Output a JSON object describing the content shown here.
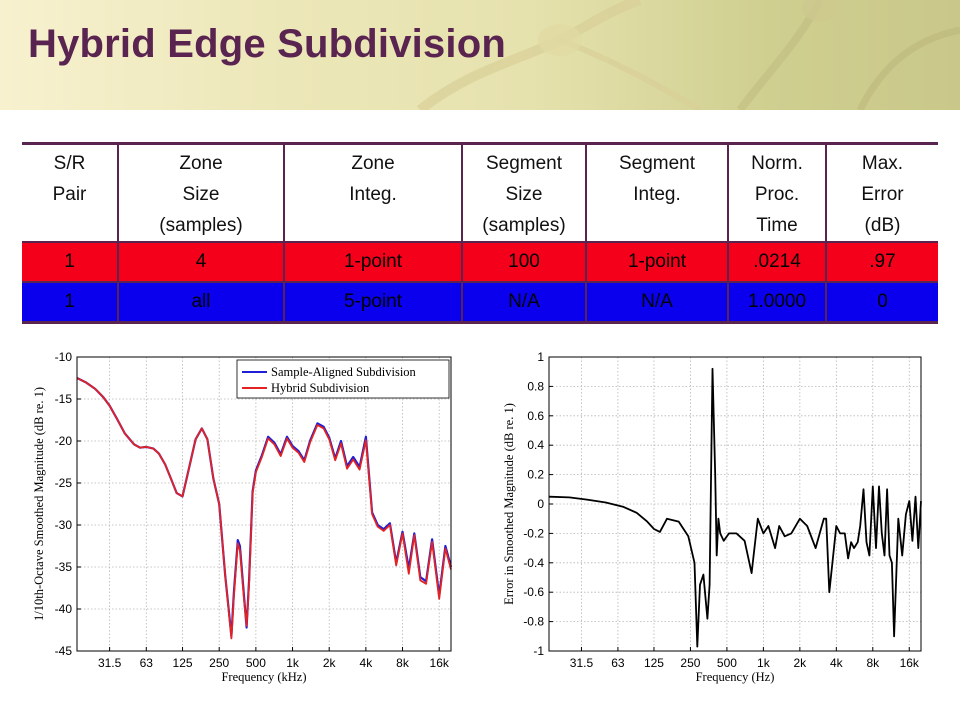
{
  "slide": {
    "title": "Hybrid Edge Subdivision"
  },
  "table": {
    "headers": [
      [
        "S/R",
        "Pair"
      ],
      [
        "Zone",
        "Size",
        "(samples)"
      ],
      [
        "Zone",
        "Integ."
      ],
      [
        "Segment",
        "Size",
        "(samples)"
      ],
      [
        "Segment",
        "Integ."
      ],
      [
        "Norm.",
        "Proc.",
        "Time"
      ],
      [
        "Max.",
        "Error",
        "(dB)"
      ]
    ],
    "rows": [
      {
        "color": "#f5001b",
        "cells": [
          "1",
          "4",
          "1-point",
          "100",
          "1-point",
          ".0214",
          ".97"
        ]
      },
      {
        "color": "#0a00ee",
        "cells": [
          "1",
          "all",
          "5-point",
          "N/A",
          "N/A",
          "1.0000",
          "0"
        ]
      }
    ]
  },
  "chart_data": [
    {
      "type": "line",
      "xlabel": "Frequency (kHz)",
      "ylabel": "1/10th-Octave Smoothed Magnitude (dB re. 1)",
      "x_scale": "log",
      "xlim": [
        17,
        20000
      ],
      "ylim": [
        -45,
        -10
      ],
      "x_ticks": [
        31.5,
        63,
        125,
        250,
        500,
        1000,
        2000,
        4000,
        8000,
        16000
      ],
      "x_tick_labels": [
        "31.5",
        "63",
        "125",
        "250",
        "500",
        "1k",
        "2k",
        "4k",
        "8k",
        "16k"
      ],
      "y_ticks": [
        -10,
        -15,
        -20,
        -25,
        -30,
        -35,
        -40,
        -45
      ],
      "grid": true,
      "legend_position": "top-right",
      "series": [
        {
          "name": "Sample-Aligned Subdivision",
          "color": "#1f1fd6",
          "x": [
            17,
            20,
            24,
            28,
            31.5,
            36,
            42,
            50,
            56,
            63,
            72,
            80,
            90,
            100,
            112,
            125,
            140,
            160,
            180,
            200,
            224,
            250,
            280,
            315,
            330,
            355,
            370,
            400,
            420,
            440,
            470,
            500,
            560,
            630,
            710,
            800,
            900,
            1000,
            1120,
            1250,
            1400,
            1600,
            1800,
            2000,
            2240,
            2500,
            2800,
            3150,
            3550,
            4000,
            4500,
            5000,
            5600,
            6300,
            7100,
            8000,
            9000,
            10000,
            11200,
            12500,
            14000,
            16000,
            18000,
            20000
          ],
          "y": [
            -12.5,
            -13,
            -13.8,
            -14.8,
            -15.8,
            -17.3,
            -19.1,
            -20.4,
            -20.8,
            -20.7,
            -20.9,
            -21.5,
            -22.8,
            -24.4,
            -26.2,
            -26.6,
            -23.5,
            -19.8,
            -18.5,
            -19.8,
            -24.5,
            -27.5,
            -36,
            -43.2,
            -38,
            -31.8,
            -32.5,
            -38.6,
            -42.2,
            -36.5,
            -26,
            -23.5,
            -21.7,
            -19.5,
            -20.2,
            -21.6,
            -19.5,
            -20.6,
            -21.2,
            -22.3,
            -19.9,
            -17.9,
            -18.3,
            -19.6,
            -22.1,
            -20,
            -23,
            -21.9,
            -23.1,
            -19.5,
            -28.5,
            -30,
            -30.5,
            -29.8,
            -34.5,
            -30.8,
            -35.2,
            -31,
            -36.2,
            -36.7,
            -31.7,
            -38.4,
            -32.5,
            -35
          ]
        },
        {
          "name": "Hybrid Subdivision",
          "color": "#e32222",
          "x": [
            17,
            20,
            24,
            28,
            31.5,
            36,
            42,
            50,
            56,
            63,
            72,
            80,
            90,
            100,
            112,
            125,
            140,
            160,
            180,
            200,
            224,
            250,
            280,
            315,
            330,
            355,
            370,
            400,
            420,
            440,
            470,
            500,
            560,
            630,
            710,
            800,
            900,
            1000,
            1120,
            1250,
            1400,
            1600,
            1800,
            2000,
            2240,
            2500,
            2800,
            3150,
            3550,
            4000,
            4500,
            5000,
            5600,
            6300,
            7100,
            8000,
            9000,
            10000,
            11200,
            12500,
            14000,
            16000,
            18000,
            20000
          ],
          "y": [
            -12.5,
            -13,
            -13.8,
            -14.8,
            -15.8,
            -17.3,
            -19.1,
            -20.4,
            -20.8,
            -20.7,
            -20.9,
            -21.5,
            -22.8,
            -24.4,
            -26.2,
            -26.6,
            -23.5,
            -19.8,
            -18.5,
            -19.8,
            -24.5,
            -27.5,
            -36,
            -43.5,
            -38.5,
            -32.2,
            -33,
            -39,
            -42,
            -37,
            -26.2,
            -23.7,
            -21.9,
            -19.7,
            -20.4,
            -21.8,
            -19.7,
            -20.8,
            -21.4,
            -22.5,
            -20.1,
            -18.1,
            -18.5,
            -19.8,
            -22.3,
            -20.3,
            -23.3,
            -22.2,
            -23.4,
            -19.9,
            -28.7,
            -30.2,
            -30.7,
            -30,
            -34.8,
            -31,
            -35.8,
            -31.2,
            -36.6,
            -37,
            -32,
            -38.8,
            -32.8,
            -35.3
          ]
        }
      ]
    },
    {
      "type": "line",
      "xlabel": "Frequency (Hz)",
      "ylabel": "Error in Smoothed Magnitude (dB re. 1)",
      "x_scale": "log",
      "xlim": [
        17,
        20000
      ],
      "ylim": [
        -1,
        1
      ],
      "x_ticks": [
        31.5,
        63,
        125,
        250,
        500,
        1000,
        2000,
        4000,
        8000,
        16000
      ],
      "x_tick_labels": [
        "31.5",
        "63",
        "125",
        "250",
        "500",
        "1k",
        "2k",
        "4k",
        "8k",
        "16k"
      ],
      "y_ticks": [
        1,
        0.8,
        0.6,
        0.4,
        0.2,
        0,
        -0.2,
        -0.4,
        -0.6,
        -0.8,
        -1
      ],
      "y_tick_labels": [
        "1",
        "0.8",
        "0.6",
        "0.4",
        "0.2",
        "0",
        "-0.2",
        "-0.4",
        "-0.6",
        "-0.8",
        "-1"
      ],
      "grid": true,
      "series": [
        {
          "color": "#000000",
          "x": [
            17,
            25,
            35,
            50,
            70,
            90,
            110,
            125,
            140,
            160,
            200,
            240,
            270,
            285,
            300,
            320,
            345,
            360,
            380,
            400,
            412,
            425,
            440,
            470,
            520,
            600,
            700,
            800,
            900,
            1000,
            1100,
            1250,
            1350,
            1500,
            1700,
            2000,
            2300,
            2700,
            3150,
            3300,
            3500,
            4000,
            4300,
            4700,
            5000,
            5300,
            5600,
            6000,
            6300,
            6700,
            7100,
            7500,
            8000,
            8500,
            9000,
            9500,
            10000,
            10500,
            11000,
            11500,
            12000,
            13000,
            14000,
            15000,
            16000,
            17000,
            18000,
            19000,
            20000
          ],
          "y": [
            0.05,
            0.045,
            0.03,
            0.01,
            -0.02,
            -0.06,
            -0.12,
            -0.17,
            -0.19,
            -0.1,
            -0.12,
            -0.22,
            -0.4,
            -0.97,
            -0.55,
            -0.48,
            -0.78,
            -0.55,
            0.92,
            0.2,
            -0.35,
            -0.1,
            -0.2,
            -0.25,
            -0.2,
            -0.2,
            -0.25,
            -0.47,
            -0.1,
            -0.2,
            -0.15,
            -0.3,
            -0.15,
            -0.22,
            -0.2,
            -0.1,
            -0.15,
            -0.3,
            -0.1,
            -0.1,
            -0.6,
            -0.15,
            -0.2,
            -0.2,
            -0.37,
            -0.26,
            -0.3,
            -0.26,
            -0.15,
            0.1,
            -0.26,
            -0.35,
            0.12,
            -0.3,
            0.12,
            -0.2,
            -0.35,
            0.1,
            -0.35,
            -0.4,
            -0.9,
            -0.1,
            -0.35,
            -0.07,
            0.02,
            -0.25,
            0.05,
            -0.3,
            0.02
          ]
        }
      ]
    }
  ]
}
